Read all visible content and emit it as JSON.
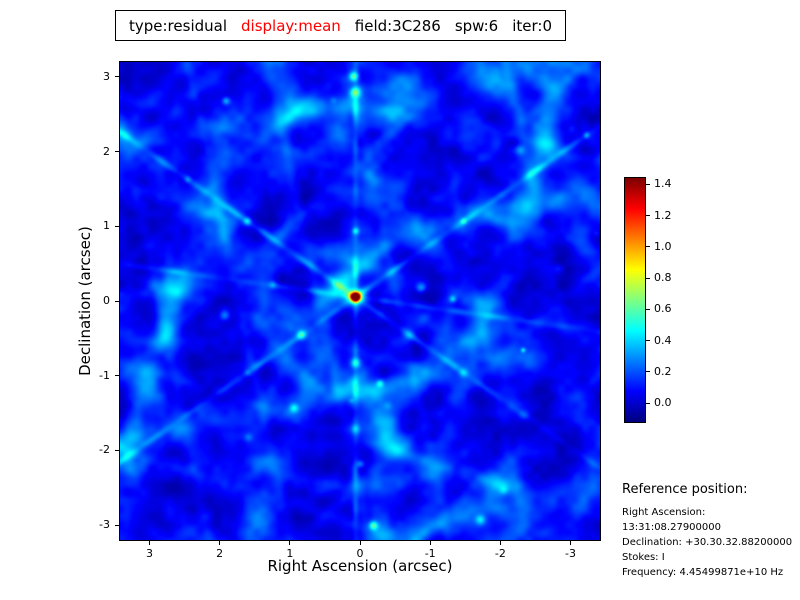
{
  "header": {
    "segments": [
      {
        "text": "type:residual",
        "color": "#000000"
      },
      {
        "text": "display:mean",
        "color": "#ff0000"
      },
      {
        "text": "field:3C286",
        "color": "#000000"
      },
      {
        "text": "spw:6",
        "color": "#000000"
      },
      {
        "text": "iter:0",
        "color": "#000000"
      }
    ]
  },
  "reference": {
    "heading": "Reference position:",
    "lines": [
      "Right Ascension: 13:31:08.27900000",
      "Declination: +30.30.32.88200000",
      "Stokes: I",
      "Frequency: 4.45499871e+10 Hz"
    ]
  },
  "chart_data": {
    "type": "heatmap",
    "title": "type:residual display:mean field:3C286 spw:6 iter:0",
    "xlabel": "Right Ascension (arcsec)",
    "ylabel": "Declination (arcsec)",
    "x_range": [
      3.42,
      -3.42
    ],
    "y_range": [
      -3.2,
      3.2
    ],
    "x_ticks": [
      3,
      2,
      1,
      0,
      -1,
      -2,
      -3
    ],
    "y_ticks": [
      -3,
      -2,
      -1,
      0,
      1,
      2,
      3
    ],
    "grid": false,
    "colormap": "jet",
    "colorbar_ticks": [
      1.4,
      1.2,
      1.0,
      0.8,
      0.6,
      0.4,
      0.2,
      0.0
    ],
    "value_range": [
      -0.12,
      1.44
    ],
    "peak_source": {
      "ra_arcsec": 0.07,
      "dec_arcsec": 0.06,
      "value": 1.4
    },
    "background_rms_level": 0.05,
    "description": "Interferometric residual sky map: dark blue noise floor crossed by web-like cyan sidelobe filaments and radial spokes, with a bright compact source (red core, yellow-green halo) at the field center and small cyan knots at filament intersections."
  }
}
